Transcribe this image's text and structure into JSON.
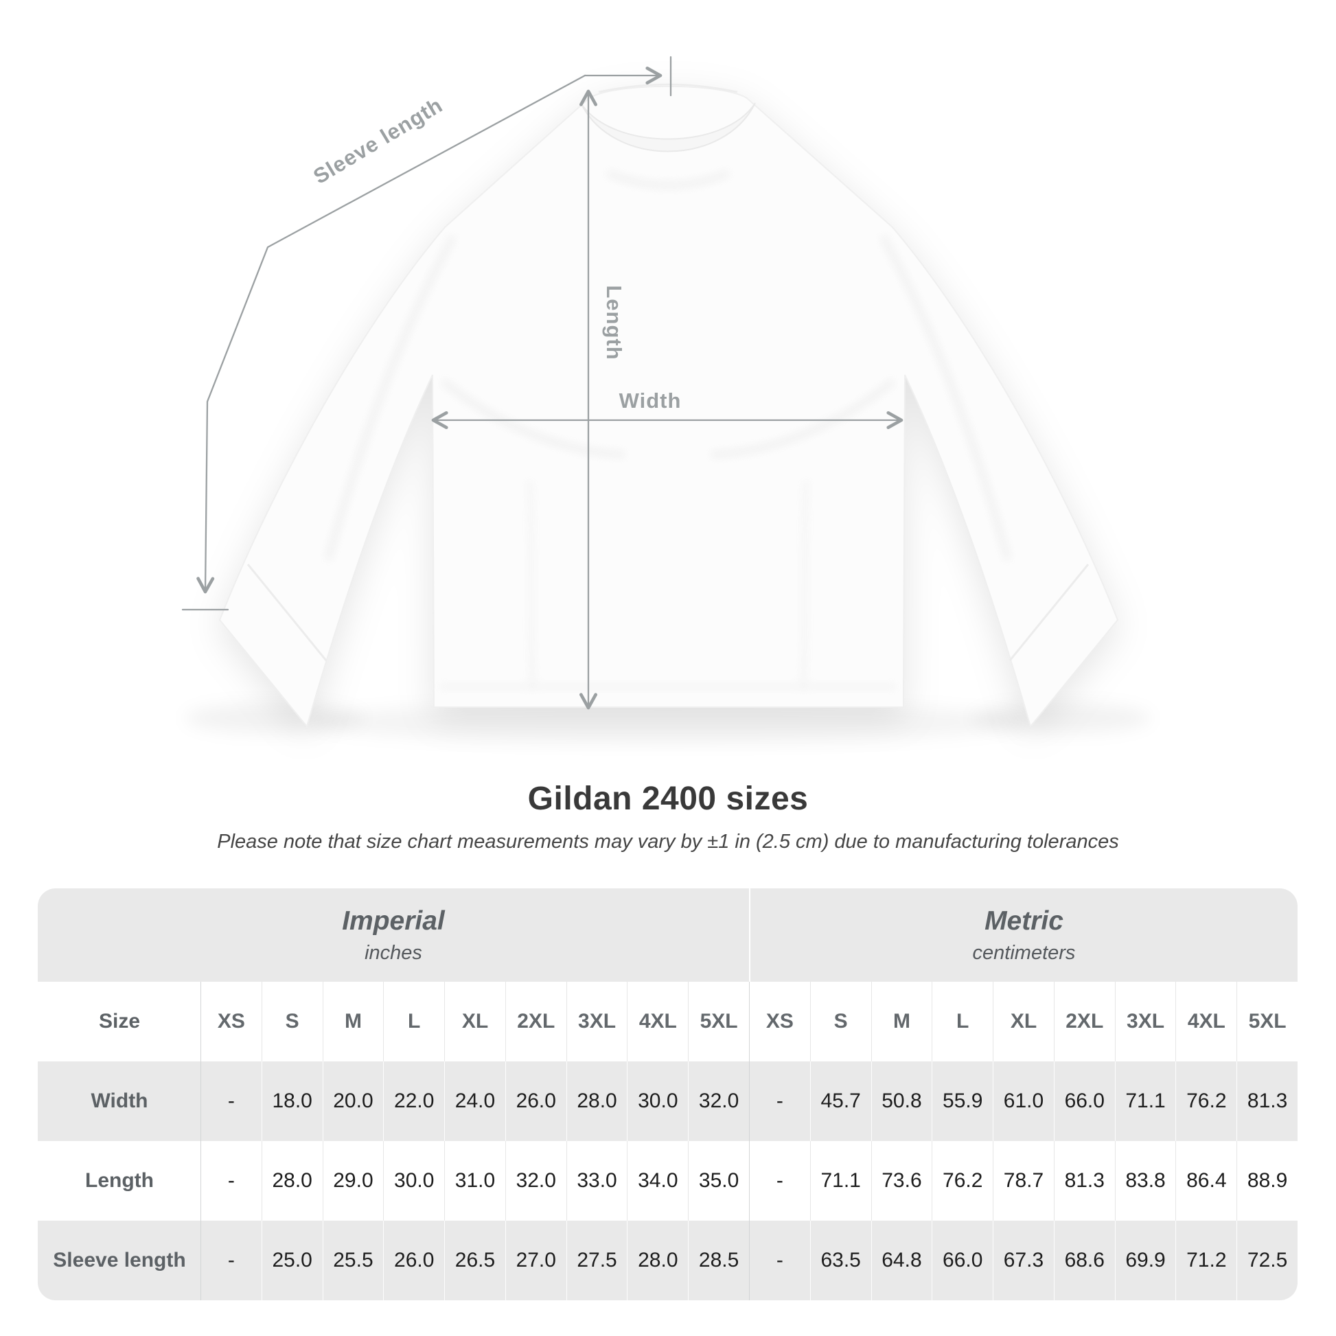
{
  "diagram": {
    "measurement_labels": {
      "sleeve_length": "Sleeve length",
      "length": "Length",
      "width": "Width"
    },
    "annotation_color": "#9ba0a2"
  },
  "heading": {
    "title": "Gildan 2400 sizes",
    "subtitle": "Please note that size chart measurements may vary by ±1 in (2.5 cm) due to manufacturing tolerances"
  },
  "size_chart": {
    "corner_header": "Size",
    "size_labels": [
      "XS",
      "S",
      "M",
      "L",
      "XL",
      "2XL",
      "3XL",
      "4XL",
      "5XL"
    ],
    "unit_sections": [
      {
        "name": "Imperial",
        "unit": "inches"
      },
      {
        "name": "Metric",
        "unit": "centimeters"
      }
    ],
    "rows": [
      {
        "label": "Width",
        "imperial": [
          "-",
          "18.0",
          "20.0",
          "22.0",
          "24.0",
          "26.0",
          "28.0",
          "30.0",
          "32.0"
        ],
        "metric": [
          "-",
          "45.7",
          "50.8",
          "55.9",
          "61.0",
          "66.0",
          "71.1",
          "76.2",
          "81.3"
        ]
      },
      {
        "label": "Length",
        "imperial": [
          "-",
          "28.0",
          "29.0",
          "30.0",
          "31.0",
          "32.0",
          "33.0",
          "34.0",
          "35.0"
        ],
        "metric": [
          "-",
          "71.1",
          "73.6",
          "76.2",
          "78.7",
          "81.3",
          "83.8",
          "86.4",
          "88.9"
        ]
      },
      {
        "label": "Sleeve length",
        "imperial": [
          "-",
          "25.0",
          "25.5",
          "26.0",
          "26.5",
          "27.0",
          "27.5",
          "28.0",
          "28.5"
        ],
        "metric": [
          "-",
          "63.5",
          "64.8",
          "66.0",
          "67.3",
          "68.6",
          "69.9",
          "71.2",
          "72.5"
        ]
      }
    ],
    "colors": {
      "stripe_gray": "#e9e9e9",
      "header_text": "#5c6165",
      "value_text": "#1d1d1d",
      "title_text": "#393939"
    }
  },
  "chart_data": {
    "type": "table",
    "title": "Gildan 2400 sizes",
    "note": "Please note that size chart measurements may vary by ±1 in (2.5 cm) due to manufacturing tolerances",
    "row_headers": [
      "Width",
      "Length",
      "Sleeve length"
    ],
    "column_groups": [
      {
        "group": "Imperial (inches)",
        "columns": [
          "XS",
          "S",
          "M",
          "L",
          "XL",
          "2XL",
          "3XL",
          "4XL",
          "5XL"
        ]
      },
      {
        "group": "Metric (centimeters)",
        "columns": [
          "XS",
          "S",
          "M",
          "L",
          "XL",
          "2XL",
          "3XL",
          "4XL",
          "5XL"
        ]
      }
    ],
    "values": [
      [
        "-",
        "18.0",
        "20.0",
        "22.0",
        "24.0",
        "26.0",
        "28.0",
        "30.0",
        "32.0",
        "-",
        "45.7",
        "50.8",
        "55.9",
        "61.0",
        "66.0",
        "71.1",
        "76.2",
        "81.3"
      ],
      [
        "-",
        "28.0",
        "29.0",
        "30.0",
        "31.0",
        "32.0",
        "33.0",
        "34.0",
        "35.0",
        "-",
        "71.1",
        "73.6",
        "76.2",
        "78.7",
        "81.3",
        "83.8",
        "86.4",
        "88.9"
      ],
      [
        "-",
        "25.0",
        "25.5",
        "26.0",
        "26.5",
        "27.0",
        "27.5",
        "28.0",
        "28.5",
        "-",
        "63.5",
        "64.8",
        "66.0",
        "67.3",
        "68.6",
        "69.9",
        "71.2",
        "72.5"
      ]
    ]
  }
}
